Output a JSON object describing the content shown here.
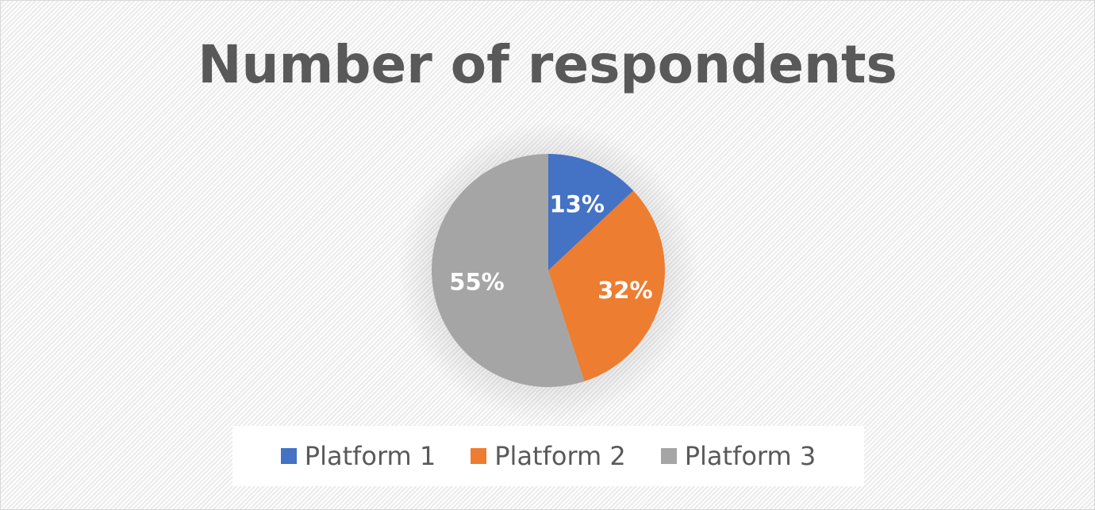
{
  "chart_data": {
    "type": "pie",
    "title": "Number of respondents",
    "categories": [
      "Platform 1",
      "Platform 2",
      "Platform 3"
    ],
    "values": [
      13,
      32,
      55
    ],
    "data_labels": [
      "13%",
      "32%",
      "55%"
    ],
    "colors": [
      "#4472c4",
      "#ed7d31",
      "#a5a5a5"
    ],
    "legend_position": "bottom",
    "background": "#f2f2f2"
  }
}
